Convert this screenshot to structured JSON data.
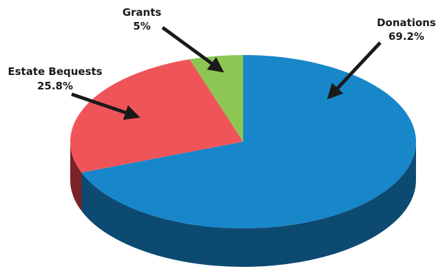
{
  "chart_data": {
    "type": "pie",
    "title": "",
    "three_d": true,
    "start_angle_deg": 90,
    "direction": "clockwise",
    "slices": [
      {
        "label": "Donations",
        "value": 69.2,
        "value_label": "69.2%",
        "color": "#1787c9",
        "side_color": "#0d4a72"
      },
      {
        "label": "Estate Bequests",
        "value": 25.8,
        "value_label": "25.8%",
        "color": "#ef5558",
        "side_color": "#7a2226"
      },
      {
        "label": "Grants",
        "value": 5,
        "value_label": "5%",
        "color": "#8dc653",
        "side_color": "#4f7a2a"
      }
    ]
  }
}
